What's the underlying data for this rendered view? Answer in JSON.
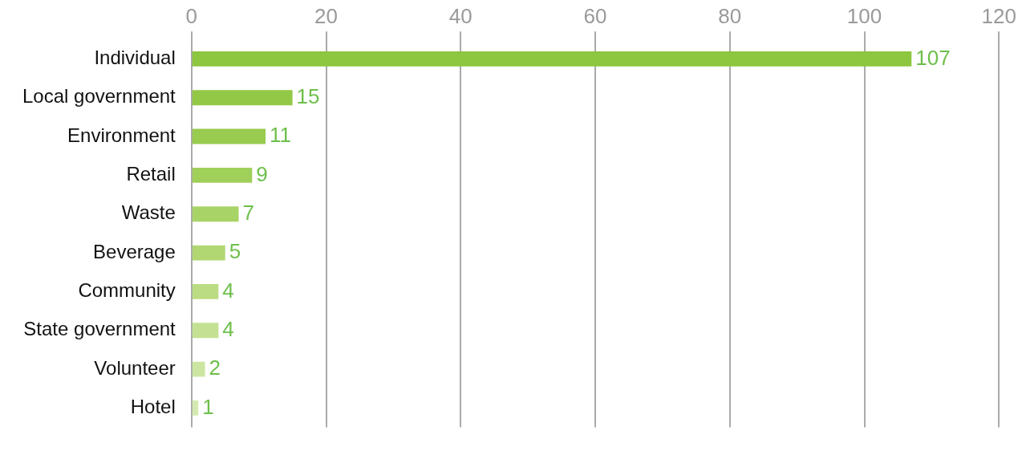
{
  "chart_data": {
    "type": "bar",
    "orientation": "horizontal",
    "categories": [
      "Individual",
      "Local government",
      "Environment",
      "Retail",
      "Waste",
      "Beverage",
      "Community",
      "State government",
      "Volunteer",
      "Hotel"
    ],
    "values": [
      107,
      15,
      11,
      9,
      7,
      5,
      4,
      4,
      2,
      1
    ],
    "colors": [
      "#8dc63f",
      "#92c846",
      "#98cb4e",
      "#a0cf5a",
      "#a8d366",
      "#b1d773",
      "#bbdc83",
      "#c4e193",
      "#cce5a1",
      "#d4e9b0"
    ],
    "xlim": [
      0,
      120
    ],
    "xticks": [
      0,
      20,
      40,
      60,
      80,
      100,
      120
    ],
    "grid": "x",
    "legend": false,
    "data_labels": true
  }
}
